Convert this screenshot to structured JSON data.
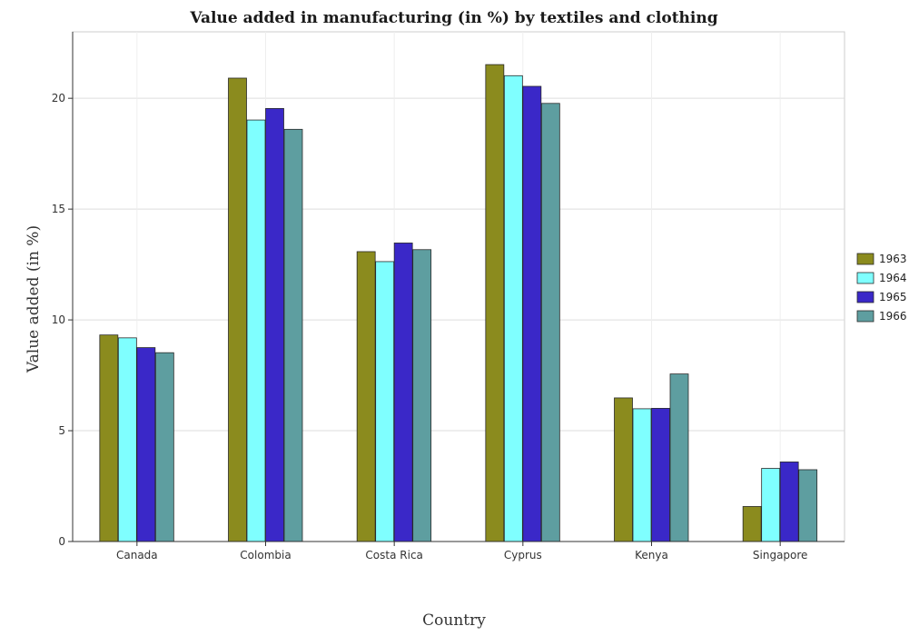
{
  "chart_data": {
    "type": "bar",
    "title": "Value added in manufacturing (in %) by textiles and clothing",
    "xlabel": "Country",
    "ylabel": "Value added (in %)",
    "categories": [
      "Canada",
      "Colombia",
      "Costa Rica",
      "Cyprus",
      "Kenya",
      "Singapore"
    ],
    "series": [
      {
        "name": "1963",
        "color": "#8b8b1e",
        "values": [
          9.32,
          20.91,
          13.08,
          21.52,
          6.48,
          1.58
        ]
      },
      {
        "name": "1964",
        "color": "#7fffff",
        "values": [
          9.19,
          19.02,
          12.63,
          21.02,
          5.99,
          3.3
        ]
      },
      {
        "name": "1965",
        "color": "#3a28c8",
        "values": [
          8.75,
          19.54,
          13.47,
          20.54,
          6.01,
          3.59
        ]
      },
      {
        "name": "1966",
        "color": "#5e9ea0",
        "values": [
          8.52,
          18.6,
          13.17,
          19.77,
          7.56,
          3.24
        ]
      }
    ],
    "ylim": [
      0,
      23
    ],
    "yticks": [
      0,
      5,
      10,
      15,
      20
    ],
    "grid": true,
    "legend": "right"
  }
}
